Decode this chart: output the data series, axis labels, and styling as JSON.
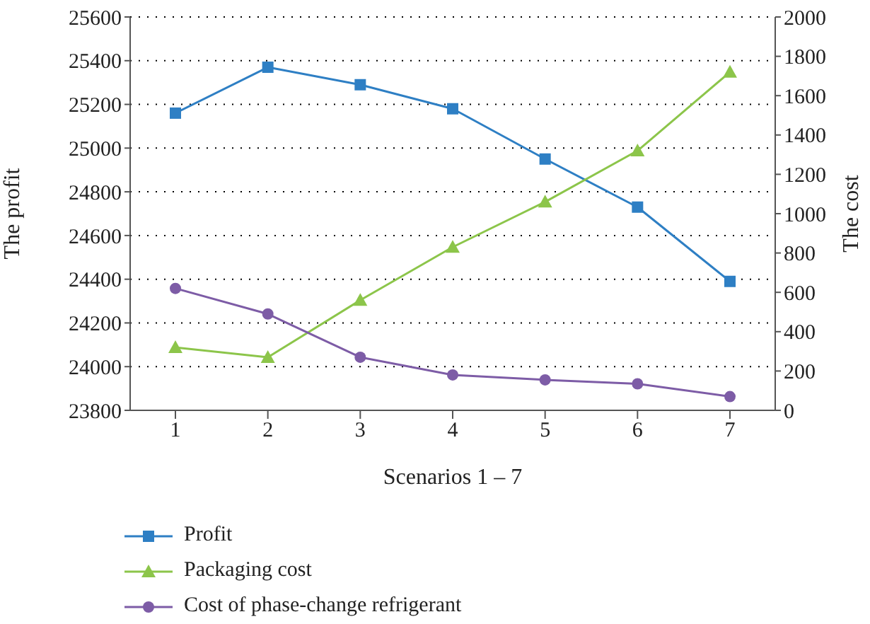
{
  "chart_data": {
    "type": "line",
    "xlabel": "Scenarios 1 – 7",
    "ylabel": "The profit",
    "y2label": "The cost",
    "categories": [
      "1",
      "2",
      "3",
      "4",
      "5",
      "6",
      "7"
    ],
    "series": [
      {
        "name": "Profit",
        "color": "#2e7fc4",
        "marker": "square",
        "values": [
          25160,
          25370,
          25290,
          25180,
          24950,
          24730,
          24390
        ]
      },
      {
        "name": "Packaging cost",
        "color": "#8cc54a",
        "marker": "triangle",
        "axis": "y2",
        "values": [
          320,
          270,
          560,
          830,
          1060,
          1320,
          1720
        ]
      },
      {
        "name": "Cost of phase-change refrigerant",
        "color": "#7d5ca6",
        "marker": "circle",
        "axis": "y2",
        "values": [
          620,
          490,
          270,
          180,
          155,
          135,
          70
        ]
      }
    ],
    "ylim": [
      23800,
      25600
    ],
    "yticks": [
      23800,
      24000,
      24200,
      24400,
      24600,
      24800,
      25000,
      25200,
      25400,
      25600
    ],
    "y2lim": [
      0,
      2000
    ],
    "y2ticks": [
      0,
      200,
      400,
      600,
      800,
      1000,
      1200,
      1400,
      1600,
      1800,
      2000
    ],
    "grid": "y",
    "legend": "bottom",
    "line_style": "solid"
  }
}
